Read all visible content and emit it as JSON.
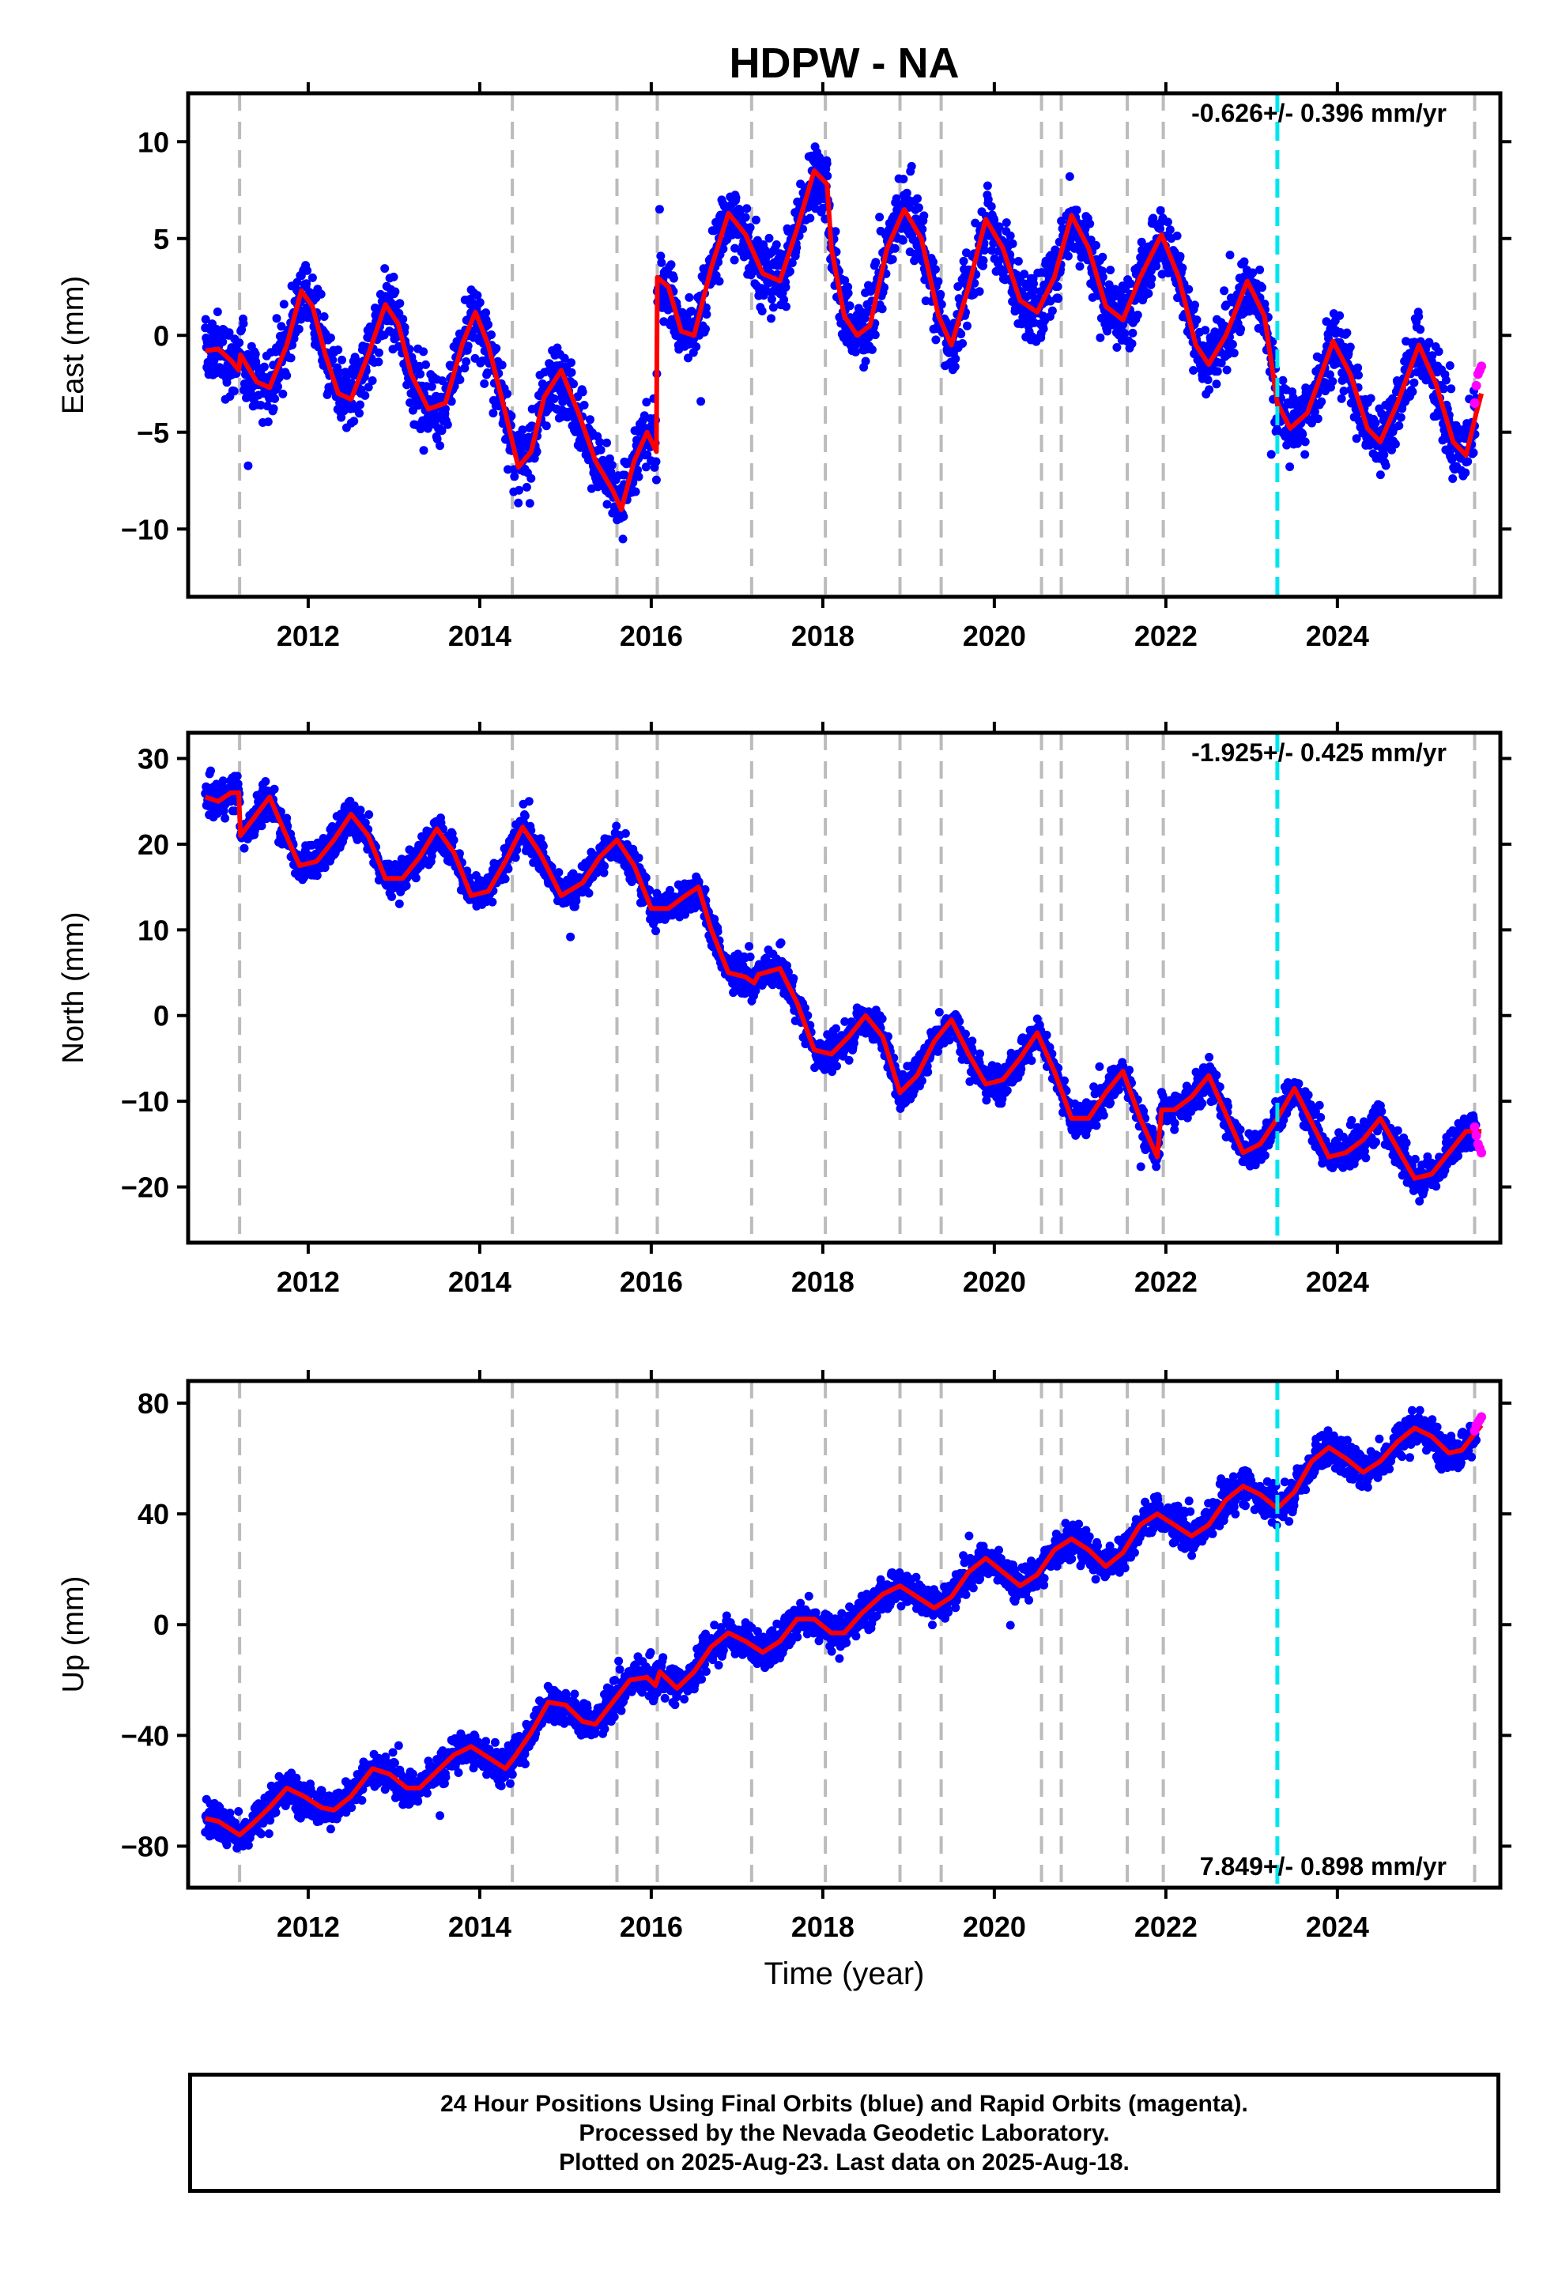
{
  "title": "HDPW - NA",
  "xlabel": "Time (year)",
  "x_ticks": [
    2012,
    2014,
    2016,
    2018,
    2020,
    2022,
    2024
  ],
  "xlim": [
    2010.6,
    2025.9
  ],
  "footer": {
    "line1": "24 Hour Positions Using Final Orbits (blue) and Rapid Orbits (magenta).",
    "line2": "Processed by the Nevada Geodetic Laboratory.",
    "line3": "Plotted on 2025-Aug-23. Last data on 2025-Aug-18."
  },
  "colors": {
    "final_orbits": "#0000ff",
    "rapid_orbits": "#ff00ff",
    "model_fit": "#ff0000",
    "equipment_change_line": "#bbbbbb",
    "event_line": "#00e5ee"
  },
  "chart_data": [
    {
      "type": "scatter",
      "panel": "east",
      "ylabel": "East (mm)",
      "rate_label": "-0.626+/- 0.396 mm/yr",
      "ylim": [
        -13.5,
        12.5
      ],
      "y_ticks": [
        10,
        5,
        0,
        -5,
        -10
      ],
      "steps": [
        [
          2011.2,
          1.8
        ],
        [
          2016.07,
          9.8
        ],
        [
          2018.1,
          -5.5
        ]
      ],
      "fit": [
        [
          2010.8,
          -0.8
        ],
        [
          2010.95,
          -0.7
        ],
        [
          2011.1,
          -1.3
        ],
        [
          2011.19,
          -1.8
        ],
        [
          2011.21,
          -1.0
        ],
        [
          2011.4,
          -2.4
        ],
        [
          2011.55,
          -2.7
        ],
        [
          2011.75,
          -0.5
        ],
        [
          2011.92,
          2.3
        ],
        [
          2012.05,
          1.5
        ],
        [
          2012.2,
          -1.0
        ],
        [
          2012.35,
          -3.0
        ],
        [
          2012.5,
          -3.3
        ],
        [
          2012.7,
          -1.0
        ],
        [
          2012.9,
          1.6
        ],
        [
          2013.05,
          0.6
        ],
        [
          2013.2,
          -2.0
        ],
        [
          2013.4,
          -3.8
        ],
        [
          2013.6,
          -3.5
        ],
        [
          2013.8,
          -0.4
        ],
        [
          2013.95,
          1.2
        ],
        [
          2014.1,
          -0.5
        ],
        [
          2014.3,
          -4.0
        ],
        [
          2014.45,
          -6.8
        ],
        [
          2014.6,
          -6.0
        ],
        [
          2014.75,
          -3.2
        ],
        [
          2014.95,
          -1.8
        ],
        [
          2015.15,
          -4.0
        ],
        [
          2015.35,
          -6.5
        ],
        [
          2015.55,
          -8.0
        ],
        [
          2015.65,
          -9.0
        ],
        [
          2015.8,
          -6.5
        ],
        [
          2015.95,
          -5.0
        ],
        [
          2016.06,
          -6.0
        ],
        [
          2016.07,
          3.0
        ],
        [
          2016.2,
          2.5
        ],
        [
          2016.35,
          0.2
        ],
        [
          2016.5,
          0.0
        ],
        [
          2016.7,
          3.5
        ],
        [
          2016.9,
          6.3
        ],
        [
          2017.1,
          5.2
        ],
        [
          2017.3,
          3.2
        ],
        [
          2017.5,
          2.8
        ],
        [
          2017.7,
          5.5
        ],
        [
          2017.9,
          8.5
        ],
        [
          2018.05,
          7.8
        ],
        [
          2018.1,
          4.5
        ],
        [
          2018.25,
          1.0
        ],
        [
          2018.4,
          0.0
        ],
        [
          2018.55,
          0.5
        ],
        [
          2018.75,
          4.5
        ],
        [
          2018.95,
          6.5
        ],
        [
          2019.15,
          5.0
        ],
        [
          2019.35,
          1.0
        ],
        [
          2019.5,
          -0.5
        ],
        [
          2019.7,
          2.5
        ],
        [
          2019.9,
          6.0
        ],
        [
          2020.1,
          4.5
        ],
        [
          2020.3,
          1.8
        ],
        [
          2020.5,
          1.2
        ],
        [
          2020.7,
          3.0
        ],
        [
          2020.9,
          6.2
        ],
        [
          2021.1,
          4.5
        ],
        [
          2021.3,
          1.5
        ],
        [
          2021.5,
          0.8
        ],
        [
          2021.7,
          3.0
        ],
        [
          2021.95,
          5.2
        ],
        [
          2022.15,
          3.0
        ],
        [
          2022.35,
          -0.5
        ],
        [
          2022.5,
          -1.5
        ],
        [
          2022.7,
          0.0
        ],
        [
          2022.95,
          2.8
        ],
        [
          2023.15,
          1.0
        ],
        [
          2023.3,
          -3.5
        ],
        [
          2023.45,
          -4.8
        ],
        [
          2023.65,
          -4.0
        ],
        [
          2023.95,
          -0.3
        ],
        [
          2024.15,
          -2.0
        ],
        [
          2024.35,
          -4.8
        ],
        [
          2024.5,
          -5.5
        ],
        [
          2024.7,
          -3.5
        ],
        [
          2024.95,
          -0.5
        ],
        [
          2025.15,
          -2.5
        ],
        [
          2025.35,
          -5.5
        ],
        [
          2025.5,
          -6.2
        ],
        [
          2025.62,
          -4.0
        ],
        [
          2025.68,
          -3.0
        ]
      ],
      "scatter_std": 1.4,
      "rapid_orbits": [
        [
          2025.6,
          -3.5
        ],
        [
          2025.62,
          -2.6
        ],
        [
          2025.64,
          -2.0
        ],
        [
          2025.66,
          -1.8
        ],
        [
          2025.68,
          -1.6
        ]
      ]
    },
    {
      "type": "scatter",
      "panel": "north",
      "ylabel": "North (mm)",
      "rate_label": "-1.925+/- 0.425 mm/yr",
      "ylim": [
        -26.5,
        33.0
      ],
      "y_ticks": [
        30,
        20,
        10,
        0,
        -10,
        -20
      ],
      "steps": [
        [
          2011.2,
          4.5
        ],
        [
          2016.5,
          -4.0
        ]
      ],
      "fit": [
        [
          2010.8,
          25.5
        ],
        [
          2010.95,
          25.0
        ],
        [
          2011.1,
          26.0
        ],
        [
          2011.19,
          26.0
        ],
        [
          2011.21,
          21.0
        ],
        [
          2011.4,
          23.5
        ],
        [
          2011.55,
          25.5
        ],
        [
          2011.7,
          22.0
        ],
        [
          2011.9,
          17.5
        ],
        [
          2012.1,
          18.0
        ],
        [
          2012.3,
          20.5
        ],
        [
          2012.5,
          23.5
        ],
        [
          2012.7,
          21.0
        ],
        [
          2012.9,
          16.0
        ],
        [
          2013.1,
          16.0
        ],
        [
          2013.3,
          18.5
        ],
        [
          2013.5,
          21.8
        ],
        [
          2013.7,
          19.0
        ],
        [
          2013.9,
          14.0
        ],
        [
          2014.1,
          14.5
        ],
        [
          2014.3,
          18.0
        ],
        [
          2014.5,
          22.0
        ],
        [
          2014.7,
          19.0
        ],
        [
          2014.95,
          14.0
        ],
        [
          2015.2,
          15.5
        ],
        [
          2015.4,
          18.5
        ],
        [
          2015.6,
          20.5
        ],
        [
          2015.8,
          17.5
        ],
        [
          2016.0,
          12.5
        ],
        [
          2016.2,
          12.5
        ],
        [
          2016.4,
          14.0
        ],
        [
          2016.55,
          15.0
        ],
        [
          2016.7,
          10.0
        ],
        [
          2016.9,
          5.0
        ],
        [
          2017.1,
          4.5
        ],
        [
          2017.2,
          3.8
        ],
        [
          2017.25,
          4.8
        ],
        [
          2017.5,
          5.5
        ],
        [
          2017.7,
          1.5
        ],
        [
          2017.9,
          -4.0
        ],
        [
          2018.1,
          -4.5
        ],
        [
          2018.3,
          -2.5
        ],
        [
          2018.5,
          0.0
        ],
        [
          2018.7,
          -2.5
        ],
        [
          2018.9,
          -9.0
        ],
        [
          2019.1,
          -7.0
        ],
        [
          2019.3,
          -3.0
        ],
        [
          2019.5,
          -0.5
        ],
        [
          2019.7,
          -4.5
        ],
        [
          2019.9,
          -8.0
        ],
        [
          2020.1,
          -7.5
        ],
        [
          2020.3,
          -5.0
        ],
        [
          2020.5,
          -2.0
        ],
        [
          2020.7,
          -6.5
        ],
        [
          2020.9,
          -12.0
        ],
        [
          2021.1,
          -12.0
        ],
        [
          2021.3,
          -9.0
        ],
        [
          2021.5,
          -6.5
        ],
        [
          2021.7,
          -12.0
        ],
        [
          2021.9,
          -16.5
        ],
        [
          2021.95,
          -11.0
        ],
        [
          2022.1,
          -11.0
        ],
        [
          2022.3,
          -9.5
        ],
        [
          2022.5,
          -7.0
        ],
        [
          2022.7,
          -11.5
        ],
        [
          2022.9,
          -16.0
        ],
        [
          2023.1,
          -15.0
        ],
        [
          2023.3,
          -12.0
        ],
        [
          2023.5,
          -8.5
        ],
        [
          2023.7,
          -12.5
        ],
        [
          2023.9,
          -16.5
        ],
        [
          2024.1,
          -16.0
        ],
        [
          2024.3,
          -14.5
        ],
        [
          2024.5,
          -12.0
        ],
        [
          2024.7,
          -15.5
        ],
        [
          2024.9,
          -19.0
        ],
        [
          2025.1,
          -18.5
        ],
        [
          2025.3,
          -16.0
        ],
        [
          2025.5,
          -13.5
        ],
        [
          2025.68,
          -13.5
        ]
      ],
      "scatter_std": 1.6,
      "rapid_orbits": [
        [
          2025.6,
          -13.0
        ],
        [
          2025.62,
          -14.0
        ],
        [
          2025.64,
          -15.0
        ],
        [
          2025.66,
          -15.5
        ],
        [
          2025.68,
          -16.0
        ]
      ]
    },
    {
      "type": "scatter",
      "panel": "up",
      "ylabel": "Up (mm)",
      "rate_label": "7.849+/- 0.898 mm/yr",
      "ylim": [
        -95.0,
        88.0
      ],
      "y_ticks": [
        80,
        40,
        0,
        -40,
        -80
      ],
      "steps": [],
      "fit": [
        [
          2010.8,
          -70
        ],
        [
          2010.95,
          -71
        ],
        [
          2011.1,
          -74
        ],
        [
          2011.2,
          -76
        ],
        [
          2011.35,
          -72
        ],
        [
          2011.55,
          -66
        ],
        [
          2011.75,
          -59
        ],
        [
          2011.95,
          -62
        ],
        [
          2012.15,
          -66
        ],
        [
          2012.3,
          -67
        ],
        [
          2012.5,
          -62
        ],
        [
          2012.75,
          -52
        ],
        [
          2012.95,
          -54
        ],
        [
          2013.15,
          -59
        ],
        [
          2013.3,
          -59
        ],
        [
          2013.5,
          -53
        ],
        [
          2013.7,
          -47
        ],
        [
          2013.9,
          -44
        ],
        [
          2014.1,
          -48
        ],
        [
          2014.3,
          -52
        ],
        [
          2014.4,
          -48
        ],
        [
          2014.6,
          -39
        ],
        [
          2014.8,
          -28
        ],
        [
          2015.0,
          -29
        ],
        [
          2015.2,
          -35
        ],
        [
          2015.35,
          -36
        ],
        [
          2015.55,
          -28
        ],
        [
          2015.75,
          -20
        ],
        [
          2015.95,
          -19
        ],
        [
          2016.05,
          -22
        ],
        [
          2016.1,
          -17
        ],
        [
          2016.3,
          -23
        ],
        [
          2016.5,
          -17
        ],
        [
          2016.7,
          -8
        ],
        [
          2016.9,
          -3
        ],
        [
          2017.1,
          -6
        ],
        [
          2017.3,
          -10
        ],
        [
          2017.5,
          -6
        ],
        [
          2017.7,
          2
        ],
        [
          2017.9,
          2
        ],
        [
          2018.1,
          -3
        ],
        [
          2018.25,
          -3
        ],
        [
          2018.45,
          4
        ],
        [
          2018.7,
          11
        ],
        [
          2018.9,
          14
        ],
        [
          2019.1,
          10
        ],
        [
          2019.3,
          6
        ],
        [
          2019.5,
          10
        ],
        [
          2019.7,
          19
        ],
        [
          2019.9,
          24
        ],
        [
          2020.1,
          19
        ],
        [
          2020.3,
          14
        ],
        [
          2020.5,
          18
        ],
        [
          2020.7,
          27
        ],
        [
          2020.9,
          31
        ],
        [
          2021.1,
          27
        ],
        [
          2021.3,
          21
        ],
        [
          2021.5,
          26
        ],
        [
          2021.7,
          36
        ],
        [
          2021.9,
          40
        ],
        [
          2022.1,
          36
        ],
        [
          2022.3,
          32
        ],
        [
          2022.5,
          36
        ],
        [
          2022.7,
          45
        ],
        [
          2022.9,
          50
        ],
        [
          2023.1,
          47
        ],
        [
          2023.3,
          42
        ],
        [
          2023.5,
          48
        ],
        [
          2023.7,
          59
        ],
        [
          2023.9,
          64
        ],
        [
          2024.1,
          60
        ],
        [
          2024.3,
          55
        ],
        [
          2024.5,
          59
        ],
        [
          2024.7,
          66
        ],
        [
          2024.9,
          71
        ],
        [
          2025.1,
          68
        ],
        [
          2025.3,
          62
        ],
        [
          2025.45,
          63
        ],
        [
          2025.6,
          69
        ],
        [
          2025.68,
          72
        ]
      ],
      "scatter_std": 5.0,
      "rapid_orbits": [
        [
          2025.6,
          70
        ],
        [
          2025.62,
          72
        ],
        [
          2025.64,
          73
        ],
        [
          2025.66,
          74
        ],
        [
          2025.68,
          75
        ]
      ]
    }
  ],
  "equipment_changes": [
    2011.2,
    2014.38,
    2015.6,
    2016.07,
    2017.17,
    2018.03,
    2018.9,
    2019.38,
    2020.55,
    2020.78,
    2021.55,
    2021.97,
    2025.6
  ],
  "event": 2023.3
}
